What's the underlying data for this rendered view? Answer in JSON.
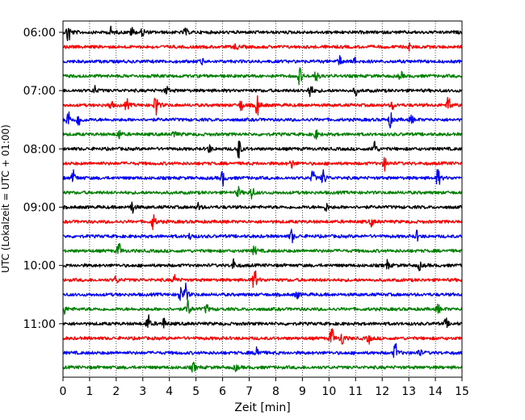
{
  "chart_data": {
    "type": "line",
    "title": "",
    "xlabel": "Zeit  [min]",
    "ylabel": "UTC (Lokalzeit = UTC + 01:00)",
    "xlim": [
      0,
      15
    ],
    "x_ticks": [
      "0",
      "1",
      "2",
      "3",
      "4",
      "5",
      "6",
      "7",
      "8",
      "9",
      "10",
      "11",
      "12",
      "13",
      "14",
      "15"
    ],
    "y_tick_labels": [
      "06:00",
      "07:00",
      "08:00",
      "09:00",
      "10:00",
      "11:00"
    ],
    "vertical_grid": "dotted",
    "colors": [
      "#000000",
      "#ff0000",
      "#0000ff",
      "#008000"
    ],
    "traces": [
      {
        "time": "06:00",
        "color": "#000000",
        "events": [
          [
            0.2,
            1.6
          ],
          [
            1.8,
            0.6
          ],
          [
            2.6,
            0.6
          ],
          [
            3.0,
            0.5
          ],
          [
            4.6,
            0.5
          ]
        ]
      },
      {
        "time": "06:15",
        "color": "#ff0000",
        "events": [
          [
            6.5,
            0.4
          ],
          [
            13.0,
            0.4
          ]
        ]
      },
      {
        "time": "06:30",
        "color": "#0000ff",
        "events": [
          [
            5.2,
            0.5
          ],
          [
            10.4,
            0.6
          ],
          [
            11.0,
            0.5
          ]
        ]
      },
      {
        "time": "06:45",
        "color": "#008000",
        "events": [
          [
            8.9,
            1.1
          ],
          [
            9.5,
            0.9
          ],
          [
            12.7,
            0.5
          ]
        ]
      },
      {
        "time": "07:00",
        "color": "#000000",
        "events": [
          [
            1.2,
            0.5
          ],
          [
            3.9,
            0.5
          ],
          [
            9.3,
            1.1
          ],
          [
            11.0,
            0.5
          ]
        ]
      },
      {
        "time": "07:15",
        "color": "#ff0000",
        "events": [
          [
            1.8,
            0.6
          ],
          [
            2.4,
            0.7
          ],
          [
            3.5,
            1.6
          ],
          [
            6.7,
            0.7
          ],
          [
            7.3,
            1.4
          ],
          [
            12.4,
            0.5
          ],
          [
            14.5,
            1.2
          ]
        ]
      },
      {
        "time": "07:30",
        "color": "#0000ff",
        "events": [
          [
            0.2,
            1.2
          ],
          [
            0.6,
            0.9
          ],
          [
            12.3,
            0.9
          ],
          [
            13.1,
            0.5
          ]
        ]
      },
      {
        "time": "07:45",
        "color": "#008000",
        "events": [
          [
            2.1,
            0.6
          ],
          [
            4.2,
            0.5
          ],
          [
            9.5,
            0.6
          ]
        ]
      },
      {
        "time": "08:00",
        "color": "#000000",
        "events": [
          [
            6.6,
            1.5
          ],
          [
            11.7,
            1.3
          ],
          [
            5.5,
            0.5
          ]
        ]
      },
      {
        "time": "08:15",
        "color": "#ff0000",
        "events": [
          [
            12.1,
            0.8
          ],
          [
            8.6,
            0.5
          ]
        ]
      },
      {
        "time": "08:30",
        "color": "#0000ff",
        "events": [
          [
            0.4,
            0.9
          ],
          [
            6.0,
            0.9
          ],
          [
            9.4,
            1.0
          ],
          [
            9.8,
            1.1
          ],
          [
            14.1,
            1.2
          ]
        ]
      },
      {
        "time": "08:45",
        "color": "#008000",
        "events": [
          [
            7.1,
            0.9
          ],
          [
            6.6,
            0.6
          ]
        ]
      },
      {
        "time": "09:00",
        "color": "#000000",
        "events": [
          [
            2.6,
            0.8
          ],
          [
            9.9,
            0.5
          ],
          [
            5.1,
            0.5
          ]
        ]
      },
      {
        "time": "09:15",
        "color": "#ff0000",
        "events": [
          [
            3.4,
            1.1
          ],
          [
            11.6,
            0.5
          ]
        ]
      },
      {
        "time": "09:30",
        "color": "#0000ff",
        "events": [
          [
            8.6,
            0.9
          ],
          [
            13.3,
            0.6
          ],
          [
            4.8,
            0.5
          ]
        ]
      },
      {
        "time": "09:45",
        "color": "#008000",
        "events": [
          [
            2.1,
            1.0
          ],
          [
            7.2,
            0.6
          ]
        ]
      },
      {
        "time": "10:00",
        "color": "#000000",
        "events": [
          [
            6.4,
            0.7
          ],
          [
            12.2,
            0.6
          ],
          [
            13.4,
            0.5
          ]
        ]
      },
      {
        "time": "10:15",
        "color": "#ff0000",
        "events": [
          [
            7.2,
            1.5
          ],
          [
            2.0,
            0.5
          ],
          [
            4.2,
            0.6
          ]
        ]
      },
      {
        "time": "10:30",
        "color": "#0000ff",
        "events": [
          [
            4.6,
            1.3
          ],
          [
            4.4,
            0.9
          ],
          [
            8.8,
            0.5
          ]
        ]
      },
      {
        "time": "10:45",
        "color": "#008000",
        "events": [
          [
            4.7,
            1.2
          ],
          [
            0.0,
            1.2
          ],
          [
            5.4,
            0.6
          ],
          [
            14.1,
            0.6
          ]
        ]
      },
      {
        "time": "11:00",
        "color": "#000000",
        "events": [
          [
            3.2,
            1.1
          ],
          [
            3.8,
            0.6
          ],
          [
            14.4,
            0.6
          ]
        ]
      },
      {
        "time": "11:15",
        "color": "#ff0000",
        "events": [
          [
            10.1,
            1.4
          ],
          [
            10.5,
            0.9
          ],
          [
            11.5,
            0.6
          ]
        ]
      },
      {
        "time": "11:30",
        "color": "#0000ff",
        "events": [
          [
            12.5,
            1.2
          ],
          [
            7.3,
            1.0
          ],
          [
            13.4,
            0.5
          ]
        ]
      },
      {
        "time": "11:45",
        "color": "#008000",
        "events": [
          [
            4.9,
            0.6
          ],
          [
            6.5,
            0.4
          ]
        ]
      }
    ]
  }
}
